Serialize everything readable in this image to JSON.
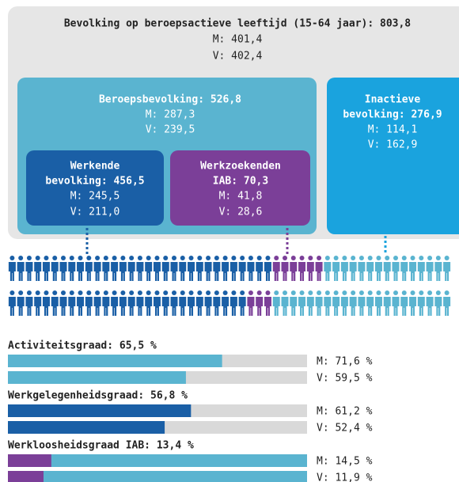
{
  "population": {
    "title": "Bevolking op beroepsactieve leeftijd (15-64 jaar): 803,8",
    "m": "M: 401,4",
    "v": "V: 402,4"
  },
  "labor_force": {
    "title": "Beroepsbevolking: 526,8",
    "m": "M: 287,3",
    "v": "V: 239,5"
  },
  "employed": {
    "title_lines": [
      "Werkende",
      "bevolking: 456,5"
    ],
    "m": "M: 245,5",
    "v": "V: 211,0"
  },
  "jobseekers": {
    "title_lines": [
      "Werkzoekenden",
      "IAB: 70,3"
    ],
    "m": "M: 41,8",
    "v": "V: 28,6"
  },
  "inactive": {
    "title_lines": [
      "Inactieve",
      "bevolking: 276,9"
    ],
    "m": "M: 114,1",
    "v": "V: 162,9"
  },
  "indicators": [
    {
      "title": "Activiteitsgraad: 65,5 %",
      "xlim": [
        0,
        100
      ],
      "color": "#5ab4d0",
      "track": "#d9d9d9",
      "rows": [
        {
          "label": "M: 71,6 %",
          "value": 71.6
        },
        {
          "label": "V: 59,5 %",
          "value": 59.5
        }
      ]
    },
    {
      "title": "Werkgelegenheidsgraad: 56,8 %",
      "xlim": [
        0,
        100
      ],
      "color": "#1a5fa6",
      "track": "#d9d9d9",
      "rows": [
        {
          "label": "M: 61,2 %",
          "value": 61.2
        },
        {
          "label": "V: 52,4 %",
          "value": 52.4
        }
      ]
    },
    {
      "title": "Werkloosheidsgraad IAB: 13,4 %",
      "xlim": [
        0,
        100
      ],
      "color": "#7b3f98",
      "track": "#5ab4d0",
      "rows": [
        {
          "label": "M: 14,5 %",
          "value": 14.5
        },
        {
          "label": "V: 11,9 %",
          "value": 11.9
        }
      ]
    }
  ]
}
